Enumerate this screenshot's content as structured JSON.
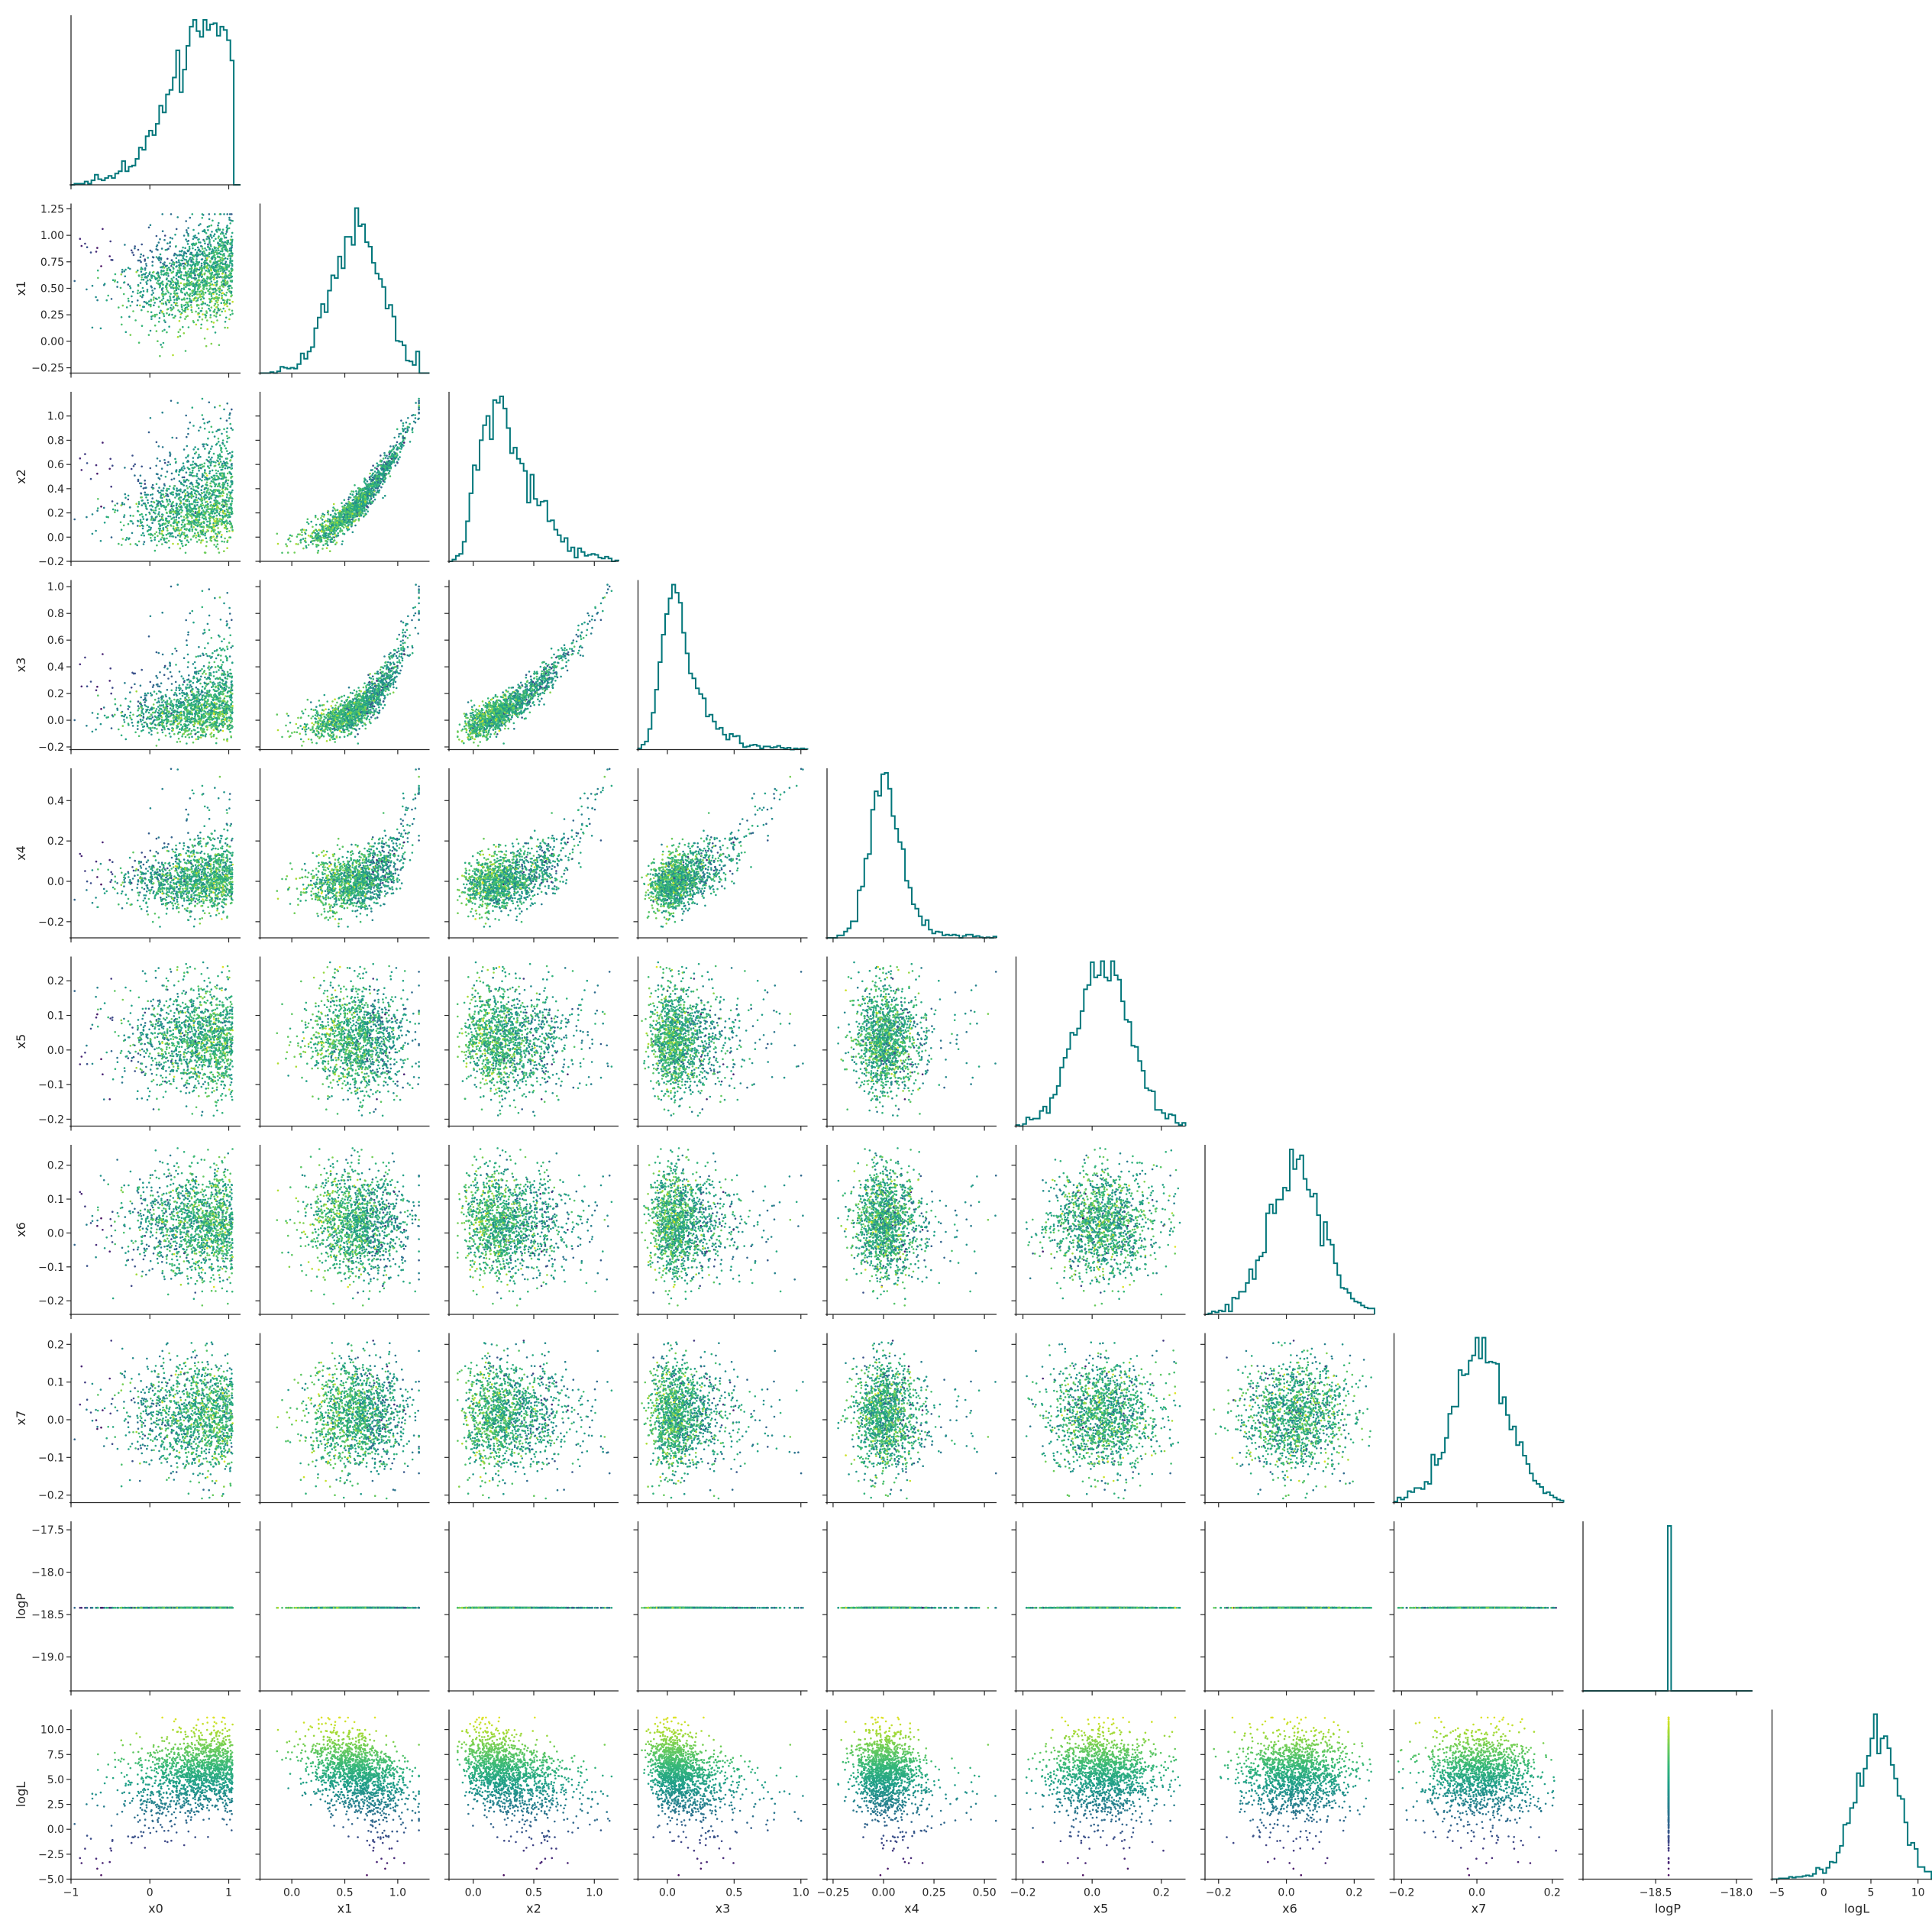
{
  "chart_data": {
    "type": "scatter",
    "subtype": "corner-plot (pairwise scatter + marginal step histograms)",
    "variables": [
      "x0",
      "x1",
      "x2",
      "x3",
      "x4",
      "x5",
      "x6",
      "x7",
      "logP",
      "logL"
    ],
    "color_by": "logL",
    "colormap": "viridis",
    "histogram_color": "#00767a",
    "histogram_style": "step",
    "axes": {
      "x0": {
        "range": [
          -1.0,
          1.15
        ],
        "ticks": [
          -1,
          0,
          1
        ],
        "tick_labels": [
          "−1",
          "0",
          "1"
        ]
      },
      "x1": {
        "range": [
          -0.3,
          1.3
        ],
        "ticks": [
          0.0,
          0.5,
          1.0
        ],
        "tick_labels": [
          "0.0",
          "0.5",
          "1.0"
        ],
        "y_ticks": [
          -0.25,
          0,
          0.25,
          0.5,
          0.75,
          1,
          1.25
        ],
        "y_tick_labels": [
          "−0.25",
          "0.00",
          "0.25",
          "0.50",
          "0.75",
          "1.00",
          "1.25"
        ]
      },
      "x2": {
        "range": [
          -0.2,
          1.2
        ],
        "ticks": [
          0.0,
          0.5,
          1.0
        ],
        "tick_labels": [
          "0.0",
          "0.5",
          "1.0"
        ],
        "y_ticks": [
          -0.2,
          0,
          0.2,
          0.4,
          0.6,
          0.8,
          1.0
        ],
        "y_tick_labels": [
          "−0.2",
          "0.0",
          "0.2",
          "0.4",
          "0.6",
          "0.8",
          "1.0"
        ]
      },
      "x3": {
        "range": [
          -0.22,
          1.05
        ],
        "ticks": [
          0.0,
          0.5,
          1.0
        ],
        "tick_labels": [
          "0.0",
          "0.5",
          "1.0"
        ],
        "y_ticks": [
          -0.2,
          0,
          0.2,
          0.4,
          0.6,
          0.8,
          1.0
        ],
        "y_tick_labels": [
          "−0.2",
          "0.0",
          "0.2",
          "0.4",
          "0.6",
          "0.8",
          "1.0"
        ]
      },
      "x4": {
        "range": [
          -0.28,
          0.56
        ],
        "ticks": [
          -0.25,
          0.0,
          0.25,
          0.5
        ],
        "tick_labels": [
          "−0.25",
          "0.00",
          "0.25",
          "0.50"
        ],
        "y_ticks": [
          -0.2,
          0,
          0.2,
          0.4
        ],
        "y_tick_labels": [
          "−0.2",
          "0.0",
          "0.2",
          "0.4"
        ]
      },
      "x5": {
        "range": [
          -0.22,
          0.27
        ],
        "ticks": [
          -0.2,
          0.0,
          0.2
        ],
        "tick_labels": [
          "−0.2",
          "0.0",
          "0.2"
        ],
        "y_ticks": [
          -0.2,
          -0.1,
          0,
          0.1,
          0.2
        ],
        "y_tick_labels": [
          "−0.2",
          "−0.1",
          "0.0",
          "0.1",
          "0.2"
        ]
      },
      "x6": {
        "range": [
          -0.24,
          0.26
        ],
        "ticks": [
          -0.2,
          0.0,
          0.2
        ],
        "tick_labels": [
          "−0.2",
          "0.0",
          "0.2"
        ],
        "y_ticks": [
          -0.2,
          -0.1,
          0,
          0.1,
          0.2
        ],
        "y_tick_labels": [
          "−0.2",
          "−0.1",
          "0.0",
          "0.1",
          "0.2"
        ]
      },
      "x7": {
        "range": [
          -0.22,
          0.23
        ],
        "ticks": [
          -0.2,
          0.0,
          0.2
        ],
        "tick_labels": [
          "−0.2",
          "0.0",
          "0.2"
        ],
        "y_ticks": [
          -0.2,
          -0.1,
          0,
          0.1,
          0.2
        ],
        "y_tick_labels": [
          "−0.2",
          "−0.1",
          "0.0",
          "0.1",
          "0.2"
        ]
      },
      "logP": {
        "range": [
          -18.95,
          -17.9
        ],
        "ticks": [
          -18.5,
          -18.0
        ],
        "tick_labels": [
          "−18.5",
          "−18.0"
        ],
        "y_range": [
          -19.4,
          -17.4
        ],
        "y_ticks": [
          -19,
          -18.5,
          -18,
          -17.5
        ],
        "y_tick_labels": [
          "−19.0",
          "−18.5",
          "−18.0",
          "−17.5"
        ]
      },
      "logL": {
        "range": [
          -5.5,
          12.5
        ],
        "ticks": [
          -5,
          0,
          5,
          10
        ],
        "tick_labels": [
          "−5",
          "0",
          "5",
          "10"
        ],
        "y_range": [
          -5.0,
          12.0
        ],
        "y_ticks": [
          -5,
          -2.5,
          0,
          2.5,
          5,
          7.5,
          10
        ],
        "y_tick_labels": [
          "−5.0",
          "−2.5",
          "0.0",
          "2.5",
          "5.0",
          "7.5",
          "10.0"
        ]
      }
    },
    "logP_constant_value": -18.42,
    "marginal_histograms": {
      "x0": {
        "shape": "left-skewed, rising from -1 to a peak near 0.7, sharp drop at 1.05"
      },
      "x1": {
        "shape": "bell-shaped, peak near 0.6"
      },
      "x2": {
        "shape": "right-skewed, peak near 0.15"
      },
      "x3": {
        "shape": "right-skewed, peak near 0.1"
      },
      "x4": {
        "shape": "right-skewed, peak near 0.0"
      },
      "x5": {
        "shape": "approximately normal, peak near 0.03"
      },
      "x6": {
        "shape": "approximately normal, peak near 0.03"
      },
      "x7": {
        "shape": "approximately normal, peak near 0.01"
      },
      "logP": {
        "shape": "single spike at -18.42"
      },
      "logL": {
        "shape": "broad bimodal, peaks near 3 and 6, range -4 to 11"
      }
    },
    "samples_per_panel_approx": 3000,
    "grid": false,
    "legend": "none"
  }
}
